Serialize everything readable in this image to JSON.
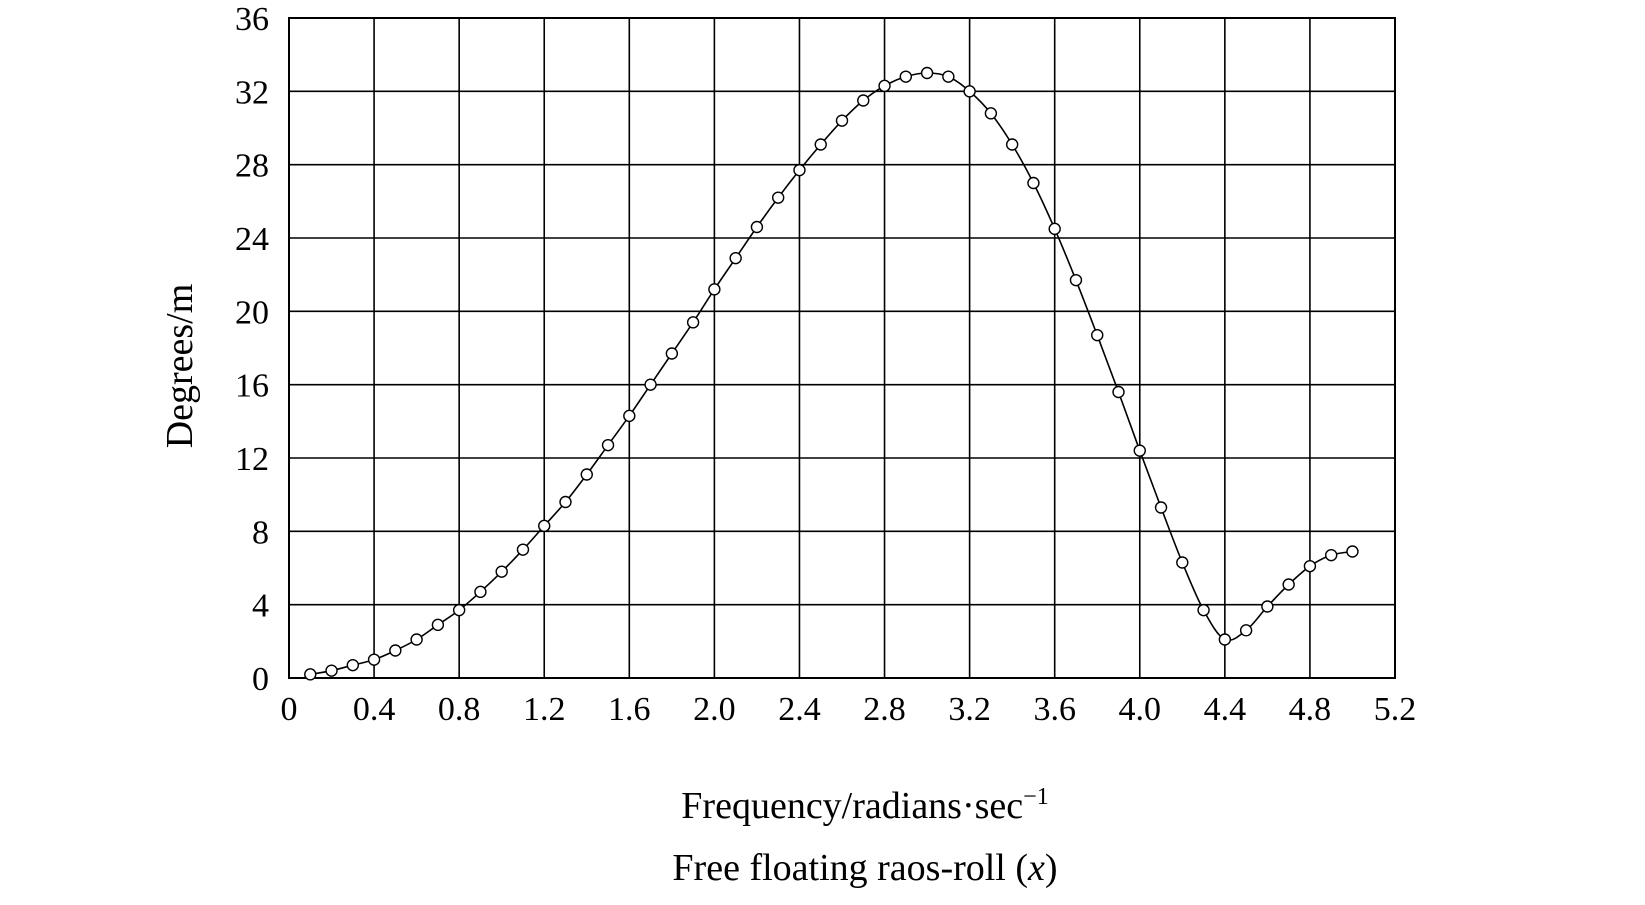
{
  "chart_data": {
    "type": "line",
    "title": "Free floating raos-roll (x)",
    "xlabel": "Frequency/radians·sec",
    "xlabel_superscript": "−1",
    "ylabel": "Degrees/m",
    "caption_parts": {
      "before": "Free floating raos-roll (",
      "italic": "x",
      "after": ")"
    },
    "xlim": [
      0,
      5.2
    ],
    "ylim": [
      0,
      36
    ],
    "x_ticks": [
      0,
      0.4,
      0.8,
      1.2,
      1.6,
      2.0,
      2.4,
      2.8,
      3.2,
      3.6,
      4.0,
      4.4,
      4.8,
      5.2
    ],
    "x_tick_labels": [
      "0",
      "0.4",
      "0.8",
      "1.2",
      "1.6",
      "2.0",
      "2.4",
      "2.8",
      "3.2",
      "3.6",
      "4.0",
      "4.4",
      "4.8",
      "5.2"
    ],
    "y_ticks": [
      0,
      4,
      8,
      12,
      16,
      20,
      24,
      28,
      32,
      36
    ],
    "y_tick_labels": [
      "0",
      "4",
      "8",
      "12",
      "16",
      "20",
      "24",
      "28",
      "32",
      "36"
    ],
    "grid": true,
    "marker": "open-circle",
    "series": [
      {
        "x": [
          0.1,
          0.2,
          0.3,
          0.4,
          0.5,
          0.6,
          0.7,
          0.8,
          0.9,
          1.0,
          1.1,
          1.2,
          1.3,
          1.4,
          1.5,
          1.6,
          1.7,
          1.8,
          1.9,
          2.0,
          2.1,
          2.2,
          2.3,
          2.4,
          2.5,
          2.6,
          2.7,
          2.8,
          2.9,
          3.0,
          3.1,
          3.2,
          3.3,
          3.4,
          3.5,
          3.6,
          3.7,
          3.8,
          3.9,
          4.0,
          4.1,
          4.2,
          4.3,
          4.4,
          4.5,
          4.6,
          4.7,
          4.8,
          4.9,
          5.0
        ],
        "y": [
          0.2,
          0.4,
          0.7,
          1.0,
          1.5,
          2.1,
          2.9,
          3.7,
          4.7,
          5.8,
          7.0,
          8.3,
          9.6,
          11.1,
          12.7,
          14.3,
          16.0,
          17.7,
          19.4,
          21.2,
          22.9,
          24.6,
          26.2,
          27.7,
          29.1,
          30.4,
          31.5,
          32.3,
          32.8,
          33.0,
          32.8,
          32.0,
          30.8,
          29.1,
          27.0,
          24.5,
          21.7,
          18.7,
          15.6,
          12.4,
          9.3,
          6.3,
          3.7,
          2.1,
          2.6,
          3.9,
          5.1,
          6.1,
          6.7,
          6.9
        ]
      }
    ]
  }
}
